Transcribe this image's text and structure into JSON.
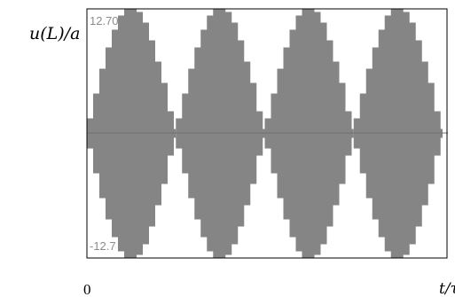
{
  "chart_data": {
    "type": "area",
    "ylabel": "u(L)/a",
    "xlabel": "t/τ",
    "x_tick_label": "0",
    "y_max_label": "12.70",
    "y_min_label": "-12.7",
    "ylim": [
      -12.7,
      12.7
    ],
    "x_range": [
      0,
      4.05
    ],
    "series": [
      {
        "envelope_lobes": [
          {
            "start": 0.0,
            "end": 1.0,
            "peak": 12.7
          },
          {
            "start": 1.0,
            "end": 2.0,
            "peak": 12.7
          },
          {
            "start": 2.0,
            "end": 3.0,
            "peak": 12.7
          },
          {
            "start": 3.0,
            "end": 4.0,
            "peak": 12.7
          }
        ]
      }
    ],
    "grid": false,
    "legend": "none"
  },
  "colors": {
    "fill": "#858585",
    "frame": "#000000",
    "tick_text": "#8c8c8c"
  }
}
